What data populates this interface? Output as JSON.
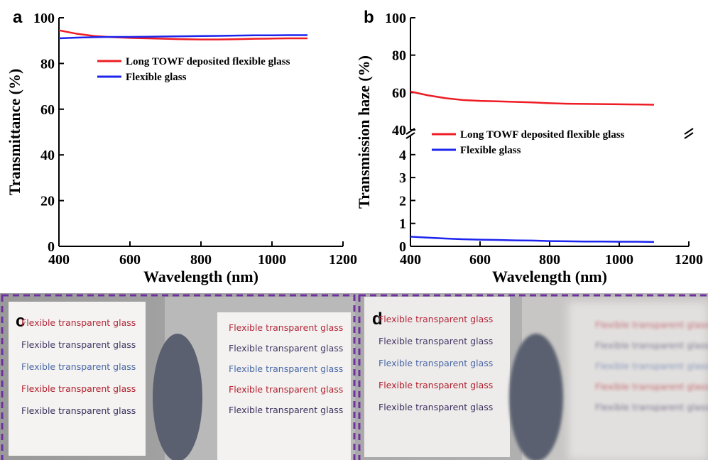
{
  "chart_data": [
    {
      "type": "line",
      "panel": "a",
      "xlabel": "Wavelength (nm)",
      "ylabel": "Transmittance (%)",
      "xlim": [
        400,
        1200
      ],
      "xticks": [
        400,
        600,
        800,
        1000,
        1200
      ],
      "ylim": [
        0,
        100
      ],
      "yticks": [
        0,
        20,
        40,
        60,
        80,
        100
      ],
      "x": [
        400,
        450,
        500,
        550,
        600,
        650,
        700,
        750,
        800,
        850,
        900,
        950,
        1000,
        1050,
        1100
      ],
      "series": [
        {
          "name": "Long TOWF deposited flexible glass",
          "color": "#ee1c24",
          "values": [
            94.5,
            93,
            92,
            91.5,
            91.2,
            91,
            90.8,
            90.6,
            90.5,
            90.5,
            90.6,
            90.8,
            90.9,
            91,
            91
          ]
        },
        {
          "name": "Flexible glass",
          "color": "#1c24ee",
          "values": [
            91,
            91.3,
            91.5,
            91.6,
            91.6,
            91.7,
            91.8,
            91.9,
            92,
            92.1,
            92.2,
            92.3,
            92.3,
            92.4,
            92.4
          ]
        }
      ]
    },
    {
      "type": "line",
      "panel": "b",
      "xlabel": "Wavelength (nm)",
      "ylabel": "Transmission haze (%)",
      "broken_axis": true,
      "xlim": [
        400,
        1200
      ],
      "xticks": [
        400,
        600,
        800,
        1000,
        1200
      ],
      "ylim": [
        0,
        4.8
      ],
      "yticks": [
        0,
        1,
        2,
        3,
        4
      ],
      "ylim_upper": [
        40,
        100
      ],
      "yticks_upper": [
        40,
        60,
        80,
        100
      ],
      "x": [
        400,
        450,
        500,
        550,
        600,
        650,
        700,
        750,
        800,
        850,
        900,
        950,
        1000,
        1050,
        1100
      ],
      "series": [
        {
          "name": "Long TOWF deposited flexible glass",
          "color": "#ee1c24",
          "axis": "upper",
          "values": [
            60.5,
            58.5,
            57,
            56,
            55.5,
            55.3,
            55,
            54.7,
            54.3,
            54,
            53.9,
            53.8,
            53.7,
            53.6,
            53.5
          ]
        },
        {
          "name": "Flexible glass",
          "color": "#1c24ee",
          "values": [
            0.42,
            0.38,
            0.34,
            0.31,
            0.29,
            0.28,
            0.26,
            0.25,
            0.23,
            0.22,
            0.21,
            0.21,
            0.2,
            0.2,
            0.19
          ]
        }
      ]
    }
  ],
  "photos": [
    {
      "panel": "c",
      "images": [
        {
          "lines": [
            "Flexible transparent glass",
            "Flexible transparent glass",
            "Flexible transparent glass",
            "Flexible transparent glass",
            "Flexible transparent glass"
          ]
        },
        {
          "lines": [
            "Flexible transparent glass",
            "Flexible transparent glass",
            "Flexible transparent glass",
            "Flexible transparent glass",
            "Flexible transparent glass"
          ]
        }
      ]
    },
    {
      "panel": "d",
      "images": [
        {
          "lines": [
            "Flexible transparent glass",
            "Flexible transparent glass",
            "Flexible transparent glass",
            "Flexible transparent glass",
            "Flexible transparent glass"
          ]
        },
        {
          "lines": [
            "Flexible transparent glass",
            "Flexible transparent glass",
            "Flexible transparent glass",
            "Flexible transparent glass",
            "Flexible transparent glass"
          ]
        }
      ]
    }
  ]
}
